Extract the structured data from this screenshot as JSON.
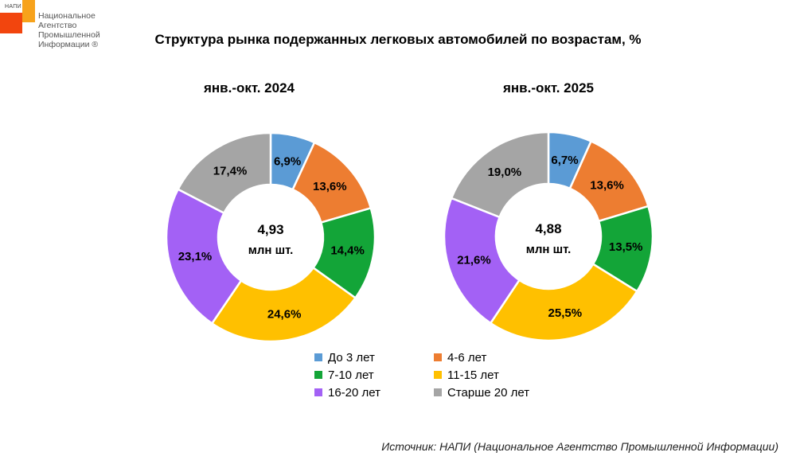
{
  "logo": {
    "small": "НАПИ",
    "lines": [
      "Национальное",
      "Агентство",
      "Промышленной",
      "Информации ®"
    ]
  },
  "title": "Структура рынка подержанных легковых автомобилей по возрастам, %",
  "source": "Источник: НАПИ (Национальное Агентство Промышленной Информации)",
  "chart_data": {
    "type": "pie",
    "variant": "donut",
    "categories": [
      "До 3 лет",
      "4-6 лет",
      "7-10 лет",
      "11-15 лет",
      "16-20 лет",
      "Старше 20 лет"
    ],
    "colors": [
      "#5b9bd5",
      "#ed7d31",
      "#13a538",
      "#ffc000",
      "#a361f5",
      "#a5a5a5"
    ],
    "legend_position": "bottom",
    "series": [
      {
        "name": "янв.-окт. 2024",
        "values": [
          6.9,
          13.6,
          14.4,
          24.6,
          23.1,
          17.4
        ],
        "labels": [
          "6,9%",
          "13,6%",
          "14,4%",
          "24,6%",
          "23,1%",
          "17,4%"
        ],
        "center_value": "4,93",
        "center_unit": "млн шт."
      },
      {
        "name": "янв.-окт. 2025",
        "values": [
          6.7,
          13.6,
          13.5,
          25.5,
          21.6,
          19.0
        ],
        "labels": [
          "6,7%",
          "13,6%",
          "13,5%",
          "25,5%",
          "21,6%",
          "19,0%"
        ],
        "center_value": "4,88",
        "center_unit": "млн шт."
      }
    ]
  }
}
